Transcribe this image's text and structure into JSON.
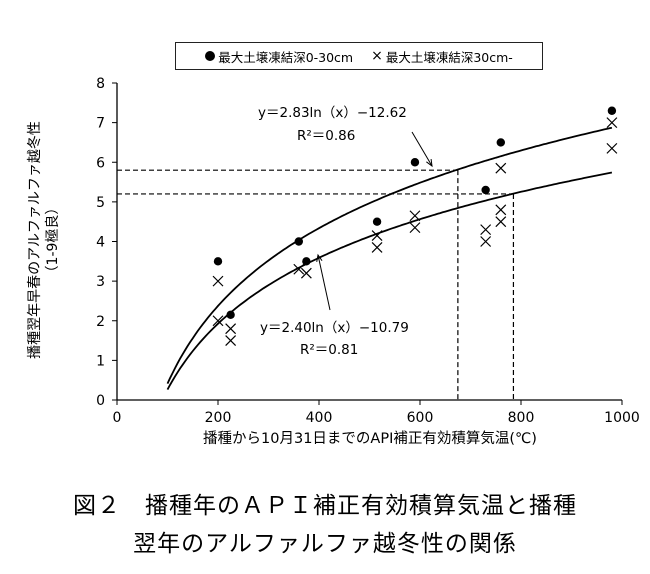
{
  "chart_data": {
    "type": "scatter",
    "xlabel": "播種から10月31日までのAPI補正有効積算気温(℃)",
    "ylabel_line1": "播種翌年早春のアルファルファ越冬性",
    "ylabel_line2": "（1-9極良）",
    "xlim": [
      0,
      1000
    ],
    "ylim": [
      0,
      8
    ],
    "xticks": [
      0,
      200,
      400,
      600,
      800,
      1000
    ],
    "yticks": [
      0,
      1,
      2,
      3,
      4,
      5,
      6,
      7,
      8
    ],
    "legend": {
      "position": "top",
      "items": [
        {
          "marker": "circle",
          "label": "最大土壌凍結深0-30cm"
        },
        {
          "marker": "x",
          "label": "最大土壌凍結深30cm-"
        }
      ]
    },
    "series": [
      {
        "name": "最大土壌凍結深0-30cm",
        "marker": "circle",
        "points": [
          [
            200,
            3.5
          ],
          [
            225,
            2.15
          ],
          [
            360,
            4.0
          ],
          [
            375,
            3.5
          ],
          [
            515,
            4.5
          ],
          [
            590,
            6.0
          ],
          [
            730,
            5.3
          ],
          [
            760,
            6.5
          ],
          [
            980,
            7.3
          ]
        ]
      },
      {
        "name": "最大土壌凍結深30cm-",
        "marker": "x",
        "points": [
          [
            200,
            3.0
          ],
          [
            200,
            2.0
          ],
          [
            225,
            1.8
          ],
          [
            225,
            1.5
          ],
          [
            360,
            3.3
          ],
          [
            375,
            3.2
          ],
          [
            515,
            4.15
          ],
          [
            515,
            3.85
          ],
          [
            590,
            4.65
          ],
          [
            590,
            4.35
          ],
          [
            730,
            4.3
          ],
          [
            730,
            4.0
          ],
          [
            760,
            5.85
          ],
          [
            760,
            4.8
          ],
          [
            760,
            4.5
          ],
          [
            980,
            7.0
          ],
          [
            980,
            6.35
          ]
        ]
      }
    ],
    "fits": [
      {
        "equation": "y＝2.83ln（x）−12.62",
        "r2": "R²＝0.86",
        "a": 2.83,
        "b": -12.62,
        "x_range": [
          100,
          980
        ]
      },
      {
        "equation": "y＝2.40ln（x）−10.79",
        "r2": "R²＝0.81",
        "a": 2.4,
        "b": -10.79,
        "x_range": [
          100,
          980
        ]
      }
    ],
    "reference_lines": [
      {
        "y": 5.8,
        "x": 675
      },
      {
        "y": 5.2,
        "x": 785
      }
    ]
  },
  "caption": {
    "line1": "図２　播種年のＡＰＩ補正有効積算気温と播種",
    "line2": "翌年のアルファルファ越冬性の関係"
  }
}
